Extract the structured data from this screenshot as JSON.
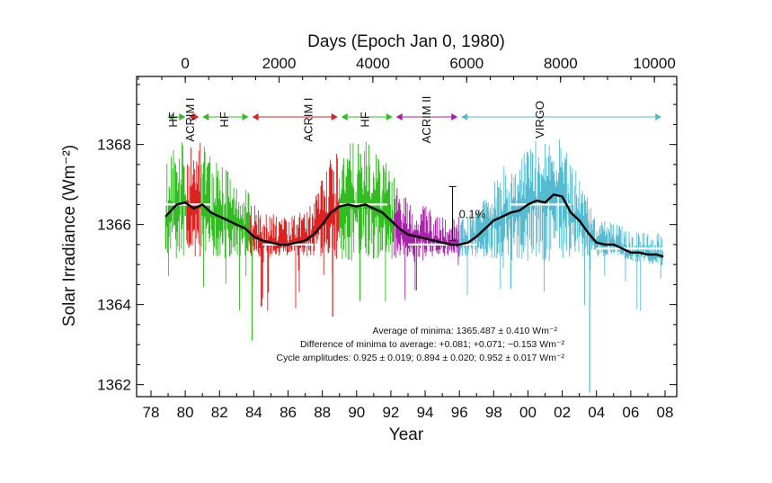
{
  "chart_data": {
    "type": "line",
    "title": "",
    "xlabel": "Year",
    "ylabel": "Solar Irradiance (Wm⁻²)",
    "top_xlabel": "Days (Epoch Jan 0, 1980)",
    "xlim": [
      1978,
      2008
    ],
    "ylim": [
      1361.7,
      1369.7
    ],
    "x_ticks": [
      1978,
      1980,
      1982,
      1984,
      1986,
      1988,
      1990,
      1992,
      1994,
      1996,
      1998,
      2000,
      2002,
      2004,
      2006,
      2008
    ],
    "x_tick_labels": [
      "78",
      "80",
      "82",
      "84",
      "86",
      "88",
      "90",
      "92",
      "94",
      "96",
      "98",
      "00",
      "02",
      "04",
      "06",
      "08"
    ],
    "y_ticks": [
      1362,
      1364,
      1366,
      1368
    ],
    "y_tick_labels": [
      "1362",
      "1364",
      "1366",
      "1368"
    ],
    "top_ticks": [
      0,
      2000,
      4000,
      6000,
      8000,
      10000
    ],
    "top_tick_labels": [
      "0",
      "2000",
      "4000",
      "6000",
      "8000",
      "10000"
    ],
    "grid": false,
    "colors": {
      "HF": "#33bb22",
      "ACRIM I": "#dd2222",
      "ACRIM II": "#aa22aa",
      "VIRGO": "#55bbd0",
      "smoothed": "#000000",
      "minima_levels": "#ffffff"
    },
    "segments": [
      {
        "name": "HF",
        "years": [
          1978.85,
          1980.12
        ],
        "color": "#33bb22"
      },
      {
        "name": "ACRIM I",
        "years": [
          1980.12,
          1980.9
        ],
        "color": "#dd2222"
      },
      {
        "name": "HF",
        "years": [
          1980.9,
          1983.8
        ],
        "color": "#33bb22"
      },
      {
        "name": "ACRIM I",
        "years": [
          1983.8,
          1989.0
        ],
        "color": "#dd2222"
      },
      {
        "name": "HF",
        "years": [
          1989.0,
          1992.2
        ],
        "color": "#33bb22"
      },
      {
        "name": "ACRIM II",
        "years": [
          1992.2,
          1996.0
        ],
        "color": "#aa22aa"
      },
      {
        "name": "VIRGO",
        "years": [
          1996.0,
          2007.9
        ],
        "color": "#55bbd0"
      }
    ],
    "instrument_labels": [
      {
        "text": "HF",
        "x": 1979.3
      },
      {
        "text": "ACRIM I",
        "x": 1980.3
      },
      {
        "text": "HF",
        "x": 1982.3
      },
      {
        "text": "ACRIM I",
        "x": 1987.2
      },
      {
        "text": "HF",
        "x": 1990.5
      },
      {
        "text": "ACRIM II",
        "x": 1994.1
      },
      {
        "text": "VIRGO",
        "x": 2000.7
      }
    ],
    "smoothed_series": {
      "x": [
        1978.85,
        1979.5,
        1980.0,
        1980.5,
        1981.0,
        1981.5,
        1982.0,
        1982.5,
        1983.0,
        1983.5,
        1984.0,
        1984.5,
        1985.0,
        1985.5,
        1986.0,
        1986.5,
        1987.0,
        1987.5,
        1988.0,
        1988.5,
        1989.0,
        1989.5,
        1990.0,
        1990.5,
        1991.0,
        1991.5,
        1992.0,
        1992.5,
        1993.0,
        1993.5,
        1994.0,
        1994.5,
        1995.0,
        1995.5,
        1996.0,
        1996.5,
        1997.0,
        1997.5,
        1998.0,
        1998.5,
        1999.0,
        1999.5,
        2000.0,
        2000.5,
        2001.0,
        2001.5,
        2002.0,
        2002.5,
        2003.0,
        2003.5,
        2004.0,
        2004.5,
        2005.0,
        2005.5,
        2006.0,
        2006.5,
        2007.0,
        2007.5,
        2007.9
      ],
      "y": [
        1366.2,
        1366.5,
        1366.55,
        1366.4,
        1366.5,
        1366.3,
        1366.2,
        1366.1,
        1366.0,
        1365.9,
        1365.7,
        1365.6,
        1365.55,
        1365.5,
        1365.5,
        1365.55,
        1365.6,
        1365.75,
        1366.0,
        1366.3,
        1366.45,
        1366.5,
        1366.45,
        1366.5,
        1366.4,
        1366.3,
        1366.1,
        1365.9,
        1365.75,
        1365.7,
        1365.65,
        1365.6,
        1365.55,
        1365.5,
        1365.5,
        1365.55,
        1365.7,
        1365.9,
        1366.1,
        1366.2,
        1366.3,
        1366.35,
        1366.5,
        1366.6,
        1366.55,
        1366.75,
        1366.7,
        1366.3,
        1366.1,
        1365.8,
        1365.55,
        1365.5,
        1365.5,
        1365.4,
        1365.3,
        1365.3,
        1365.25,
        1365.25,
        1365.2
      ]
    },
    "minima_levels": [
      {
        "x": [
          1978.85,
          1981.5
        ],
        "y": 1366.5
      },
      {
        "x": [
          1984.5,
          1987.5
        ],
        "y": 1365.5
      },
      {
        "x": [
          1989.0,
          1991.8
        ],
        "y": 1366.5
      },
      {
        "x": [
          1993.0,
          1997.0
        ],
        "y": 1365.5
      },
      {
        "x": [
          1999.0,
          2002.5
        ],
        "y": 1366.5
      },
      {
        "x": [
          2004.0,
          2008.0
        ],
        "y": 1365.4
      }
    ],
    "scale_bar": {
      "label": "0.1%",
      "x": 1995.6,
      "y_range": [
        1365.6,
        1366.95
      ]
    },
    "annotations": [
      "Average of minima:  1365.487 ± 0.410 Wm⁻²",
      "Difference of minima to average: +0.081; +0.071; −0.153 Wm⁻²",
      "Cycle amplitudes:  0.925 ± 0.019; 0.894 ± 0.020; 0.952 ± 0.017 Wm⁻²"
    ]
  }
}
